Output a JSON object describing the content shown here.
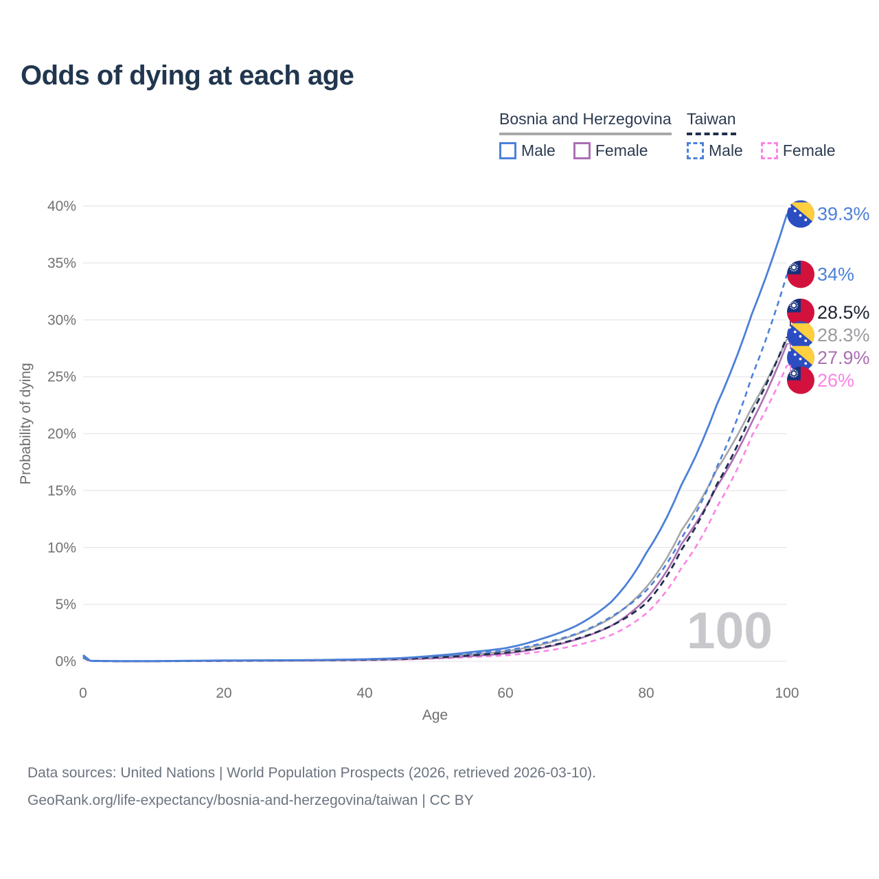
{
  "title": "Odds of dying at each age",
  "legend": {
    "groups": [
      {
        "country": "Bosnia and Herzegovina",
        "line_style": "solid",
        "underline_color": "#a8a8a8",
        "items": [
          {
            "label": "Male",
            "color": "#4c80d8",
            "style": "solid"
          },
          {
            "label": "Female",
            "color": "#ab6eb3",
            "style": "solid"
          }
        ]
      },
      {
        "country": "Taiwan",
        "line_style": "dashed",
        "underline_color": "#202f4e",
        "items": [
          {
            "label": "Male",
            "color": "#4c80d8",
            "style": "dashed"
          },
          {
            "label": "Female",
            "color": "#fb83e6",
            "style": "dashed"
          }
        ]
      }
    ]
  },
  "watermark": "100",
  "footer": {
    "line1": "Data sources: United Nations | World Population Prospects (2026, retrieved 2026-03-10).",
    "line2": "GeoRank.org/life-expectancy/bosnia-and-herzegovina/taiwan | CC BY"
  },
  "flag_colors": {
    "bosnia_blue": "#2b4dc1",
    "bosnia_yellow": "#ffcf3f",
    "taiwan_red": "#d2123d",
    "taiwan_blue": "#15317d",
    "star_white": "#ffffff"
  },
  "chart_data": {
    "type": "line",
    "title": "Odds of dying at each age",
    "xlabel": "Age",
    "ylabel": "Probability of dying",
    "xlim": [
      0,
      100
    ],
    "ylim": [
      0,
      40
    ],
    "grid": "horizontal",
    "legend_position": "top-right",
    "x_ticks": [
      {
        "value": 0,
        "label": "0"
      },
      {
        "value": 20,
        "label": "20"
      },
      {
        "value": 40,
        "label": "40"
      },
      {
        "value": 60,
        "label": "60"
      },
      {
        "value": 80,
        "label": "80"
      },
      {
        "value": 100,
        "label": "100"
      }
    ],
    "y_ticks": [
      {
        "value": 0,
        "label": "0%"
      },
      {
        "value": 5,
        "label": "5%"
      },
      {
        "value": 10,
        "label": "10%"
      },
      {
        "value": 15,
        "label": "15%"
      },
      {
        "value": 20,
        "label": "20%"
      },
      {
        "value": 25,
        "label": "25%"
      },
      {
        "value": 30,
        "label": "30%"
      },
      {
        "value": 35,
        "label": "35%"
      },
      {
        "value": 40,
        "label": "40%"
      }
    ],
    "ages": [
      0,
      1,
      5,
      10,
      15,
      20,
      25,
      30,
      35,
      40,
      45,
      50,
      55,
      60,
      65,
      70,
      75,
      80,
      85,
      90,
      95,
      100
    ],
    "series": [
      {
        "id": "bosnia-male",
        "name": "Bosnia and Herzegovina Male",
        "color": "#4c80d8",
        "dash": "solid",
        "width": 2.8,
        "flag": "bosnia",
        "end_label": "39.3%",
        "label_color": "#4c80d8",
        "values": [
          0.55,
          0.05,
          0.02,
          0.02,
          0.05,
          0.08,
          0.09,
          0.1,
          0.13,
          0.18,
          0.28,
          0.5,
          0.8,
          1.15,
          1.95,
          3.1,
          5.2,
          9.5,
          15.5,
          22.5,
          30.5,
          39.3
        ]
      },
      {
        "id": "taiwan-male",
        "name": "Taiwan Male",
        "color": "#4c80d8",
        "dash": "8 6",
        "width": 2.6,
        "flag": "taiwan",
        "end_label": "34%",
        "label_color": "#4c80d8",
        "values": [
          0.35,
          0.03,
          0.01,
          0.01,
          0.04,
          0.06,
          0.08,
          0.1,
          0.13,
          0.18,
          0.28,
          0.45,
          0.68,
          0.95,
          1.55,
          2.4,
          3.9,
          6.2,
          10.8,
          17.0,
          25.0,
          34.0
        ]
      },
      {
        "id": "taiwan-total",
        "name": "Taiwan",
        "color": "#202f4e",
        "dash": "9 6",
        "width": 2.8,
        "flag": "taiwan",
        "end_label": "28.5%",
        "label_color": "#1c2433",
        "values": [
          0.33,
          0.03,
          0.01,
          0.01,
          0.03,
          0.05,
          0.06,
          0.08,
          0.1,
          0.14,
          0.21,
          0.34,
          0.52,
          0.75,
          1.2,
          1.95,
          3.1,
          5.1,
          9.8,
          15.5,
          21.8,
          28.5
        ]
      },
      {
        "id": "bosnia-total",
        "name": "Bosnia and Herzegovina",
        "color": "#a7a7a9",
        "dash": "solid",
        "width": 2.6,
        "flag": "bosnia",
        "end_label": "28.3%",
        "label_color": "#9b9ba0",
        "values": [
          0.5,
          0.04,
          0.015,
          0.015,
          0.04,
          0.06,
          0.07,
          0.08,
          0.1,
          0.14,
          0.22,
          0.38,
          0.6,
          0.88,
          1.45,
          2.35,
          3.8,
          6.5,
          11.5,
          16.8,
          22.3,
          28.3
        ]
      },
      {
        "id": "bosnia-female",
        "name": "Bosnia and Herzegovina Female",
        "color": "#ab6eb3",
        "dash": "solid",
        "width": 2.6,
        "flag": "bosnia",
        "end_label": "27.9%",
        "label_color": "#ab6eb3",
        "values": [
          0.45,
          0.04,
          0.015,
          0.015,
          0.03,
          0.04,
          0.05,
          0.06,
          0.08,
          0.11,
          0.17,
          0.28,
          0.45,
          0.68,
          1.15,
          1.9,
          3.1,
          5.5,
          10.3,
          15.3,
          21.0,
          27.9
        ]
      },
      {
        "id": "taiwan-female",
        "name": "Taiwan Female",
        "color": "#fb83e6",
        "dash": "8 6",
        "width": 2.6,
        "flag": "taiwan",
        "end_label": "26%",
        "label_color": "#fb83e6",
        "values": [
          0.3,
          0.02,
          0.01,
          0.01,
          0.02,
          0.03,
          0.04,
          0.05,
          0.07,
          0.1,
          0.15,
          0.24,
          0.37,
          0.52,
          0.85,
          1.4,
          2.3,
          4.2,
          8.2,
          13.5,
          19.8,
          26.0
        ]
      }
    ]
  }
}
